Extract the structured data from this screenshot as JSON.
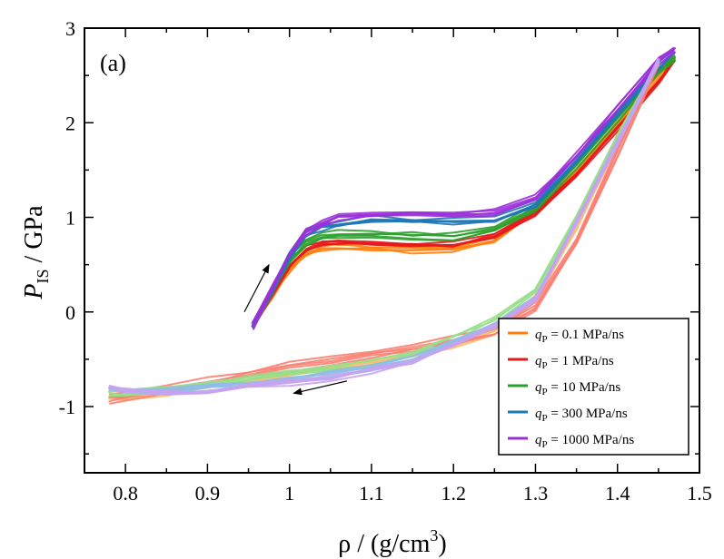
{
  "chart_data": {
    "type": "line",
    "panel_label": "(a)",
    "xlabel": {
      "symbol": "ρ",
      "rest": " / (g/cm",
      "sup": "3",
      "close": ")"
    },
    "ylabel": {
      "symbol": "P",
      "sub": "IS",
      "rest": " / GPa"
    },
    "xlim": [
      0.75,
      1.5
    ],
    "ylim": [
      -1.7,
      3.0
    ],
    "x_ticks": [
      0.8,
      0.9,
      1.0,
      1.1,
      1.2,
      1.3,
      1.4,
      1.5
    ],
    "x_tick_labels": [
      "0.8",
      "0.9",
      "1",
      "1.1",
      "1.2",
      "1.3",
      "1.4",
      "1.5"
    ],
    "y_ticks": [
      -1,
      0,
      1,
      2,
      3
    ],
    "y_tick_labels": [
      "-1",
      "0",
      "1",
      "2",
      "3"
    ],
    "legend": {
      "position": "bottom-right",
      "prefix": "q",
      "sub": "P",
      "entries": [
        " = 0.1 MPa/ns",
        " = 1 MPa/ns",
        " = 10 MPa/ns",
        " = 300 MPa/ns",
        " = 1000 MPa/ns"
      ]
    },
    "series": [
      {
        "name": "qP = 0.1 MPa/ns compression",
        "color": "#ff7f0e",
        "x": [
          0.955,
          0.98,
          1.0,
          1.02,
          1.04,
          1.06,
          1.1,
          1.15,
          1.2,
          1.25,
          1.3,
          1.35,
          1.4,
          1.45,
          1.47
        ],
        "y": [
          -0.15,
          0.2,
          0.45,
          0.62,
          0.68,
          0.7,
          0.68,
          0.65,
          0.67,
          0.76,
          1.05,
          1.5,
          2.0,
          2.5,
          2.7
        ]
      },
      {
        "name": "qP = 1 MPa/ns compression",
        "color": "#e41a1c",
        "x": [
          0.955,
          0.98,
          1.0,
          1.02,
          1.04,
          1.06,
          1.1,
          1.15,
          1.2,
          1.25,
          1.3,
          1.35,
          1.4,
          1.45,
          1.47
        ],
        "y": [
          -0.15,
          0.22,
          0.5,
          0.68,
          0.73,
          0.75,
          0.74,
          0.72,
          0.72,
          0.82,
          1.05,
          1.45,
          1.95,
          2.45,
          2.68
        ]
      },
      {
        "name": "qP = 10 MPa/ns compression",
        "color": "#2ca02c",
        "x": [
          0.955,
          0.98,
          1.0,
          1.02,
          1.04,
          1.06,
          1.1,
          1.15,
          1.2,
          1.25,
          1.3,
          1.35,
          1.4,
          1.45,
          1.47
        ],
        "y": [
          -0.15,
          0.24,
          0.55,
          0.74,
          0.8,
          0.82,
          0.82,
          0.8,
          0.8,
          0.88,
          1.1,
          1.55,
          2.05,
          2.55,
          2.7
        ]
      },
      {
        "name": "qP = 300 MPa/ns compression",
        "color": "#1f77b4",
        "x": [
          0.955,
          0.98,
          1.0,
          1.02,
          1.04,
          1.06,
          1.1,
          1.15,
          1.2,
          1.25,
          1.3,
          1.35,
          1.4,
          1.45,
          1.47
        ],
        "y": [
          -0.15,
          0.25,
          0.58,
          0.82,
          0.9,
          0.95,
          0.98,
          0.97,
          0.96,
          0.98,
          1.15,
          1.6,
          2.1,
          2.6,
          2.75
        ]
      },
      {
        "name": "qP = 1000 MPa/ns compression",
        "color": "#9b30d9",
        "x": [
          0.955,
          0.98,
          1.0,
          1.02,
          1.04,
          1.06,
          1.1,
          1.15,
          1.2,
          1.25,
          1.3,
          1.35,
          1.4,
          1.45,
          1.47
        ],
        "y": [
          -0.15,
          0.26,
          0.6,
          0.85,
          0.95,
          1.0,
          1.03,
          1.03,
          1.03,
          1.05,
          1.2,
          1.65,
          2.15,
          2.65,
          2.78
        ]
      },
      {
        "name": "qP = 0.1 MPa/ns decompression",
        "color": "#fdbf6f",
        "x": [
          1.45,
          1.4,
          1.35,
          1.3,
          1.25,
          1.2,
          1.15,
          1.1,
          1.05,
          1.0,
          0.95,
          0.9,
          0.85,
          0.8,
          0.78
        ],
        "y": [
          2.65,
          1.8,
          0.9,
          0.15,
          -0.2,
          -0.35,
          -0.45,
          -0.52,
          -0.58,
          -0.64,
          -0.72,
          -0.78,
          -0.85,
          -0.9,
          -0.9
        ]
      },
      {
        "name": "qP = 1 MPa/ns decompression",
        "color": "#fb8072",
        "x": [
          1.45,
          1.4,
          1.35,
          1.3,
          1.25,
          1.2,
          1.15,
          1.1,
          1.05,
          1.0,
          0.95,
          0.9,
          0.85,
          0.8,
          0.78
        ],
        "y": [
          2.65,
          1.7,
          0.75,
          0.05,
          -0.2,
          -0.3,
          -0.38,
          -0.45,
          -0.52,
          -0.58,
          -0.66,
          -0.74,
          -0.83,
          -0.9,
          -0.92
        ]
      },
      {
        "name": "qP = 10 MPa/ns decompression",
        "color": "#98df8a",
        "x": [
          1.45,
          1.4,
          1.35,
          1.3,
          1.25,
          1.2,
          1.15,
          1.1,
          1.05,
          1.0,
          0.95,
          0.9,
          0.85,
          0.8,
          0.78
        ],
        "y": [
          2.65,
          1.85,
          1.0,
          0.2,
          -0.1,
          -0.3,
          -0.45,
          -0.55,
          -0.6,
          -0.65,
          -0.72,
          -0.78,
          -0.84,
          -0.87,
          -0.88
        ]
      },
      {
        "name": "qP = 300 MPa/ns decompression",
        "color": "#8fbde8",
        "x": [
          1.45,
          1.4,
          1.35,
          1.3,
          1.25,
          1.2,
          1.15,
          1.1,
          1.05,
          1.0,
          0.95,
          0.9,
          0.85,
          0.8,
          0.78
        ],
        "y": [
          2.65,
          1.8,
          0.95,
          0.15,
          -0.15,
          -0.32,
          -0.5,
          -0.6,
          -0.66,
          -0.72,
          -0.76,
          -0.8,
          -0.84,
          -0.84,
          -0.82
        ]
      },
      {
        "name": "qP = 1000 MPa/ns decompression",
        "color": "#c5a3f0",
        "x": [
          1.45,
          1.4,
          1.35,
          1.3,
          1.25,
          1.2,
          1.15,
          1.1,
          1.05,
          1.0,
          0.95,
          0.9,
          0.85,
          0.8,
          0.78
        ],
        "y": [
          2.65,
          1.8,
          0.95,
          0.15,
          -0.15,
          -0.35,
          -0.52,
          -0.63,
          -0.7,
          -0.75,
          -0.8,
          -0.84,
          -0.86,
          -0.84,
          -0.8
        ]
      }
    ],
    "annotations": [
      {
        "type": "arrow",
        "label": "compression direction",
        "from": [
          0.945,
          0.0
        ],
        "to": [
          0.975,
          0.5
        ]
      },
      {
        "type": "arrow",
        "label": "decompression direction",
        "from": [
          1.07,
          -0.73
        ],
        "to": [
          1.005,
          -0.86
        ]
      }
    ]
  }
}
